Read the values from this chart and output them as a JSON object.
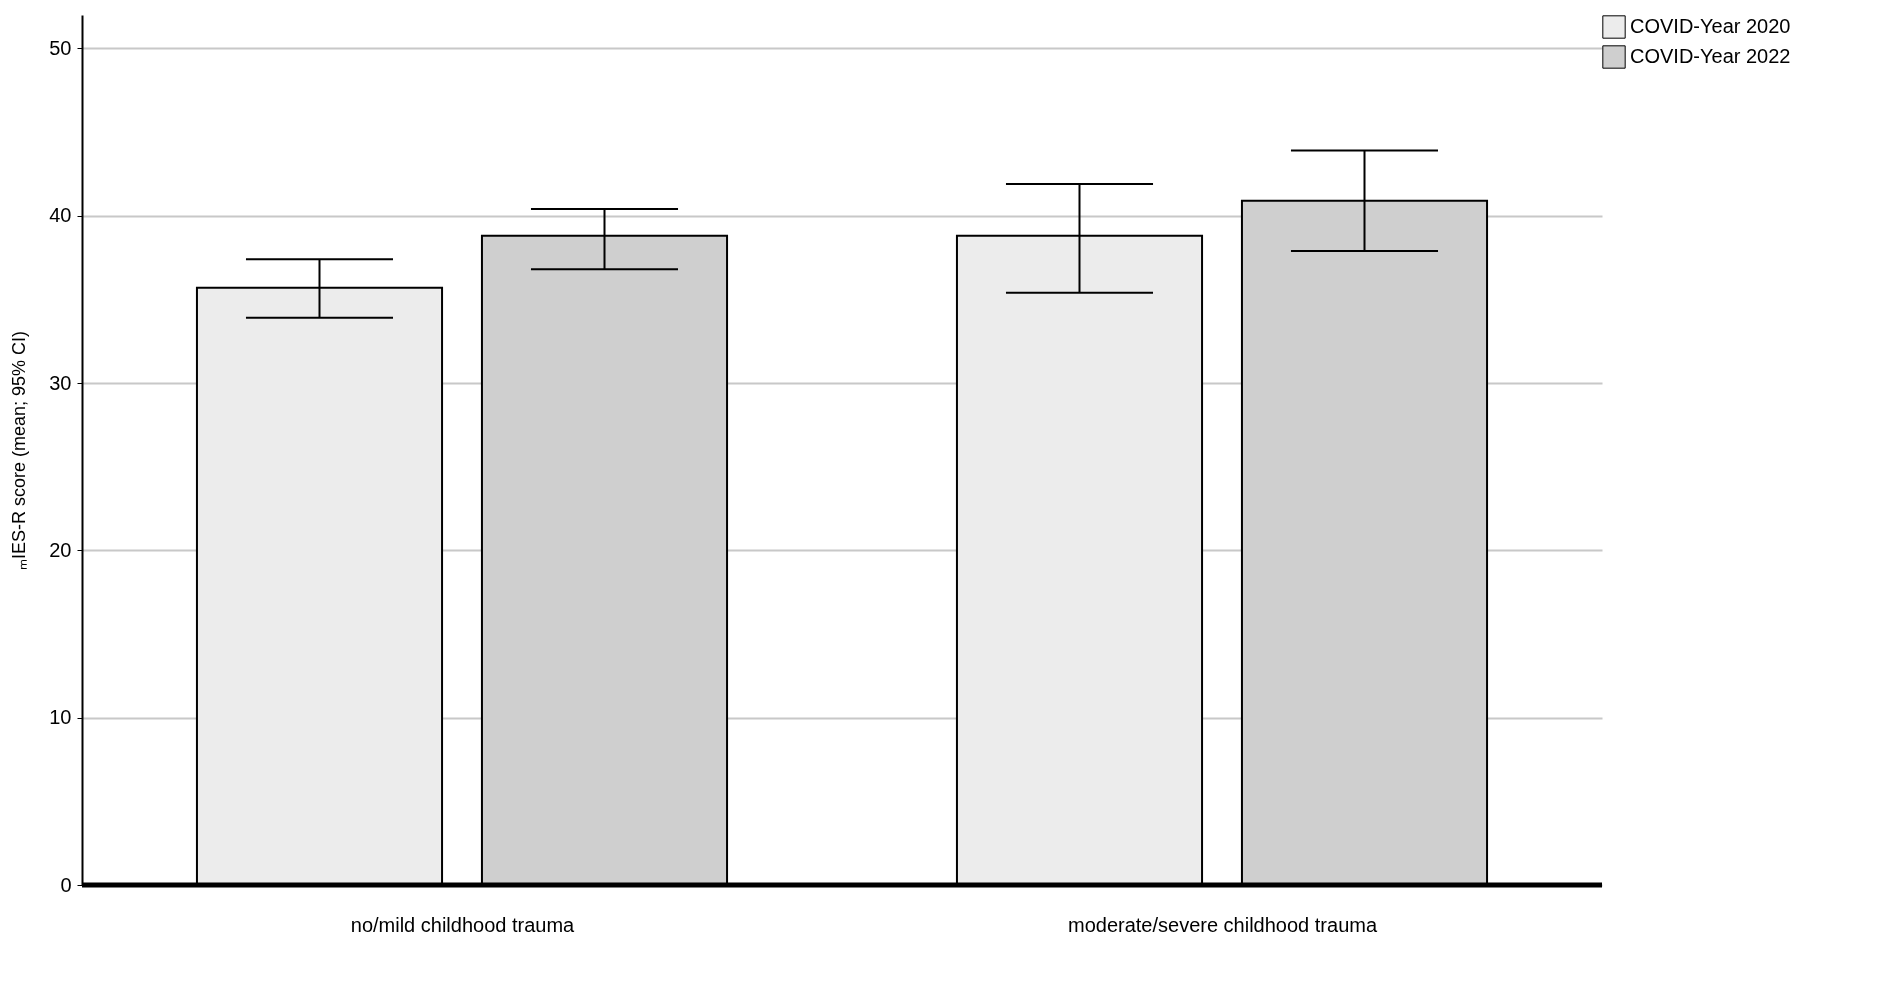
{
  "chart_data": {
    "type": "bar",
    "ylabel": "ₘIES-R score (mean; 95% CI)",
    "categories": [
      "no/mild childhood trauma",
      "moderate/severe childhood trauma"
    ],
    "series": [
      {
        "name": "COVID-Year 2020",
        "color": "#ececec",
        "values": [
          35.7,
          38.8
        ],
        "errors": [
          [
            33.9,
            37.4
          ],
          [
            35.4,
            41.9
          ]
        ]
      },
      {
        "name": "COVID-Year 2022",
        "color": "#cfcfcf",
        "values": [
          38.8,
          40.9
        ],
        "errors": [
          [
            36.8,
            40.4
          ],
          [
            37.9,
            43.9
          ]
        ]
      }
    ],
    "ylim": [
      0,
      52
    ],
    "yticks": [
      0,
      10,
      20,
      30,
      40,
      50
    ],
    "grid": "y",
    "legend": "top right"
  }
}
